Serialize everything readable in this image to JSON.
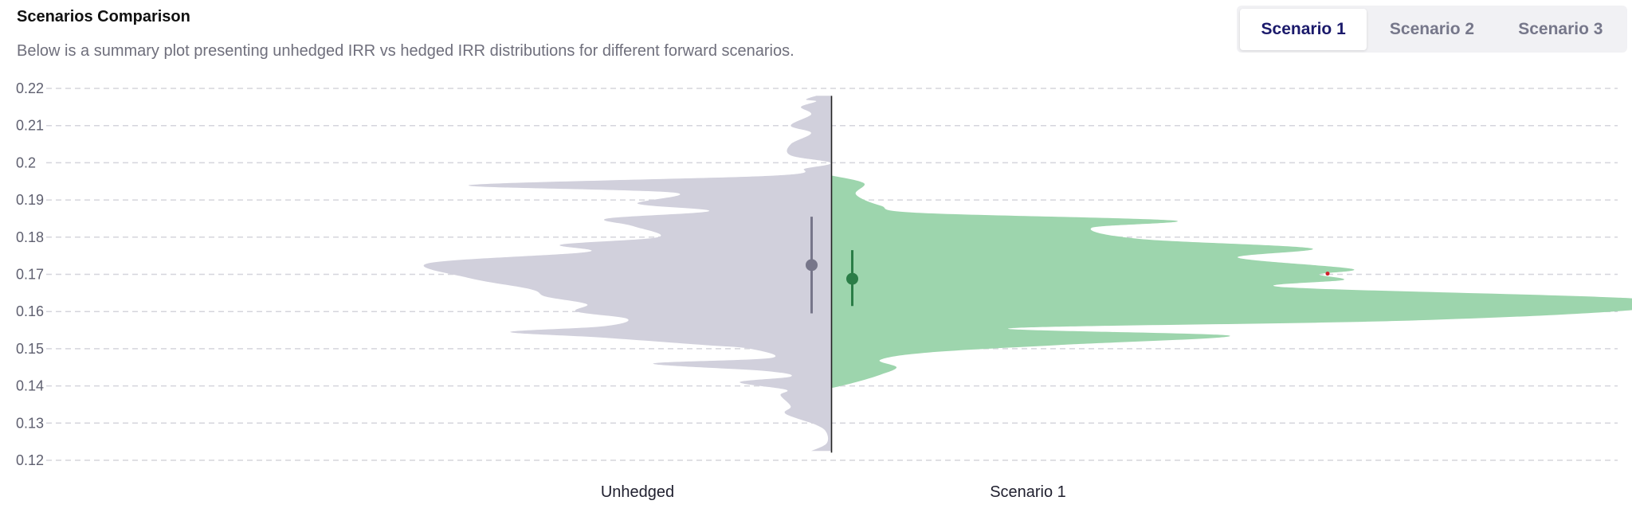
{
  "header": {
    "title": "Scenarios Comparison",
    "subtitle": "Below is a summary plot presenting unhedged IRR vs hedged IRR distributions for different forward scenarios."
  },
  "tabs": [
    {
      "label": "Scenario 1",
      "active": true
    },
    {
      "label": "Scenario 2",
      "active": false
    },
    {
      "label": "Scenario 3",
      "active": false
    }
  ],
  "colors": {
    "unhedged_fill": "#d1d0dc",
    "unhedged_marker": "#77768a",
    "hedged_fill": "#9dd5ad",
    "hedged_marker": "#2b7d47",
    "grid": "#d5d5dc",
    "axis_line": "#222222",
    "outlier": "#d11f2a",
    "active_tab_text": "#1b1a6b"
  },
  "chart_data": {
    "type": "split-violin",
    "ylim": [
      0.12,
      0.22
    ],
    "yticks": [
      0.12,
      0.13,
      0.14,
      0.15,
      0.16,
      0.17,
      0.18,
      0.19,
      0.2,
      0.21,
      0.22
    ],
    "ytick_labels": [
      "0.12",
      "0.13",
      "0.14",
      "0.15",
      "0.16",
      "0.17",
      "0.18",
      "0.19",
      "0.2",
      "0.21",
      "0.22"
    ],
    "grid": true,
    "categories": [
      "Unhedged",
      "Scenario 1"
    ],
    "series": [
      {
        "name": "Unhedged",
        "side": "left",
        "density": [
          [
            0.1225,
            0.04
          ],
          [
            0.1245,
            0.01
          ],
          [
            0.1275,
            0.01
          ],
          [
            0.1295,
            0.03
          ],
          [
            0.1325,
            0.09
          ],
          [
            0.1345,
            0.08
          ],
          [
            0.1375,
            0.1
          ],
          [
            0.139,
            0.09
          ],
          [
            0.141,
            0.18
          ],
          [
            0.1425,
            0.08
          ],
          [
            0.144,
            0.13
          ],
          [
            0.146,
            0.35
          ],
          [
            0.1475,
            0.12
          ],
          [
            0.15,
            0.16
          ],
          [
            0.151,
            0.25
          ],
          [
            0.153,
            0.45
          ],
          [
            0.1545,
            0.63
          ],
          [
            0.156,
            0.45
          ],
          [
            0.158,
            0.4
          ],
          [
            0.16,
            0.5
          ],
          [
            0.162,
            0.48
          ],
          [
            0.164,
            0.56
          ],
          [
            0.166,
            0.59
          ],
          [
            0.169,
            0.71
          ],
          [
            0.173,
            0.79
          ],
          [
            0.176,
            0.48
          ],
          [
            0.178,
            0.53
          ],
          [
            0.18,
            0.34
          ],
          [
            0.183,
            0.39
          ],
          [
            0.185,
            0.44
          ],
          [
            0.187,
            0.24
          ],
          [
            0.189,
            0.38
          ],
          [
            0.192,
            0.31
          ],
          [
            0.194,
            0.71
          ],
          [
            0.1965,
            0.12
          ],
          [
            0.1985,
            0.05
          ],
          [
            0.2,
            0.002
          ],
          [
            0.202,
            0.08
          ],
          [
            0.205,
            0.08
          ],
          [
            0.208,
            0.04
          ],
          [
            0.21,
            0.08
          ],
          [
            0.213,
            0.04
          ],
          [
            0.215,
            0.06
          ],
          [
            0.2165,
            0.03
          ],
          [
            0.217,
            0.05
          ],
          [
            0.218,
            0.03
          ]
        ],
        "median": 0.1725,
        "whisker_low": 0.1595,
        "whisker_high": 0.1855
      },
      {
        "name": "Scenario 1",
        "side": "right",
        "density": [
          [
            0.1395,
            0.002
          ],
          [
            0.141,
            0.03
          ],
          [
            0.143,
            0.06
          ],
          [
            0.145,
            0.08
          ],
          [
            0.147,
            0.06
          ],
          [
            0.149,
            0.12
          ],
          [
            0.151,
            0.28
          ],
          [
            0.1535,
            0.49
          ],
          [
            0.1555,
            0.22
          ],
          [
            0.1575,
            0.7
          ],
          [
            0.1605,
            0.99
          ],
          [
            0.1635,
            0.99
          ],
          [
            0.1665,
            0.56
          ],
          [
            0.1685,
            0.63
          ],
          [
            0.17,
            0.6
          ],
          [
            0.1715,
            0.64
          ],
          [
            0.1745,
            0.5
          ],
          [
            0.177,
            0.59
          ],
          [
            0.1795,
            0.38
          ],
          [
            0.1825,
            0.32
          ],
          [
            0.1845,
            0.42
          ],
          [
            0.1865,
            0.11
          ],
          [
            0.1885,
            0.06
          ],
          [
            0.1915,
            0.03
          ],
          [
            0.1945,
            0.04
          ],
          [
            0.1965,
            0.002
          ]
        ],
        "median": 0.1688,
        "whisker_low": 0.1615,
        "whisker_high": 0.1765,
        "outliers": [
          0.1702
        ]
      }
    ]
  }
}
